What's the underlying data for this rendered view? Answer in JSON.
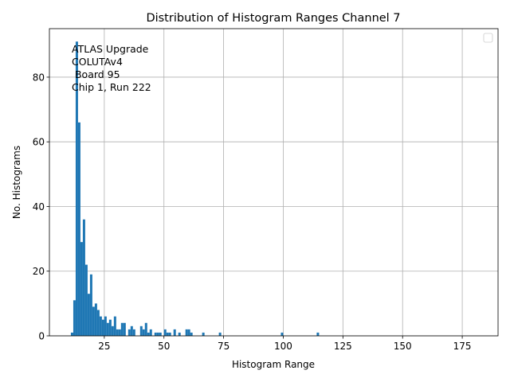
{
  "chart_data": {
    "type": "bar",
    "title": "Distribution of Histogram Ranges Channel 7",
    "xlabel": "Histogram Range",
    "ylabel": "No. Histograms",
    "xlim": [
      2,
      190
    ],
    "ylim": [
      0,
      95
    ],
    "xticks": [
      25,
      50,
      75,
      100,
      125,
      150,
      175
    ],
    "yticks": [
      0,
      20,
      40,
      60,
      80
    ],
    "grid": true,
    "legend": {
      "placement": "top-right",
      "entries": []
    },
    "annotation": [
      "ATLAS Upgrade",
      "COLUTAv4",
      " Board 95",
      "Chip 1, Run 222"
    ],
    "bar_color": "#1f77b4",
    "bin_width": 1,
    "bins": [
      {
        "x": 11,
        "y": 1
      },
      {
        "x": 12,
        "y": 11
      },
      {
        "x": 13,
        "y": 91
      },
      {
        "x": 14,
        "y": 66
      },
      {
        "x": 15,
        "y": 29
      },
      {
        "x": 16,
        "y": 36
      },
      {
        "x": 17,
        "y": 22
      },
      {
        "x": 18,
        "y": 13
      },
      {
        "x": 19,
        "y": 19
      },
      {
        "x": 20,
        "y": 9
      },
      {
        "x": 21,
        "y": 10
      },
      {
        "x": 22,
        "y": 8
      },
      {
        "x": 23,
        "y": 6
      },
      {
        "x": 24,
        "y": 5
      },
      {
        "x": 25,
        "y": 6
      },
      {
        "x": 26,
        "y": 4
      },
      {
        "x": 27,
        "y": 5
      },
      {
        "x": 28,
        "y": 3
      },
      {
        "x": 29,
        "y": 6
      },
      {
        "x": 30,
        "y": 2
      },
      {
        "x": 31,
        "y": 2
      },
      {
        "x": 32,
        "y": 4
      },
      {
        "x": 33,
        "y": 4
      },
      {
        "x": 35,
        "y": 2
      },
      {
        "x": 36,
        "y": 3
      },
      {
        "x": 37,
        "y": 2
      },
      {
        "x": 40,
        "y": 3
      },
      {
        "x": 41,
        "y": 2
      },
      {
        "x": 42,
        "y": 4
      },
      {
        "x": 43,
        "y": 1
      },
      {
        "x": 44,
        "y": 2
      },
      {
        "x": 46,
        "y": 1
      },
      {
        "x": 47,
        "y": 1
      },
      {
        "x": 48,
        "y": 1
      },
      {
        "x": 50,
        "y": 2
      },
      {
        "x": 51,
        "y": 1
      },
      {
        "x": 52,
        "y": 1
      },
      {
        "x": 54,
        "y": 2
      },
      {
        "x": 56,
        "y": 1
      },
      {
        "x": 59,
        "y": 2
      },
      {
        "x": 60,
        "y": 2
      },
      {
        "x": 61,
        "y": 1
      },
      {
        "x": 66,
        "y": 1
      },
      {
        "x": 73,
        "y": 1
      },
      {
        "x": 99,
        "y": 1
      },
      {
        "x": 114,
        "y": 1
      }
    ]
  }
}
